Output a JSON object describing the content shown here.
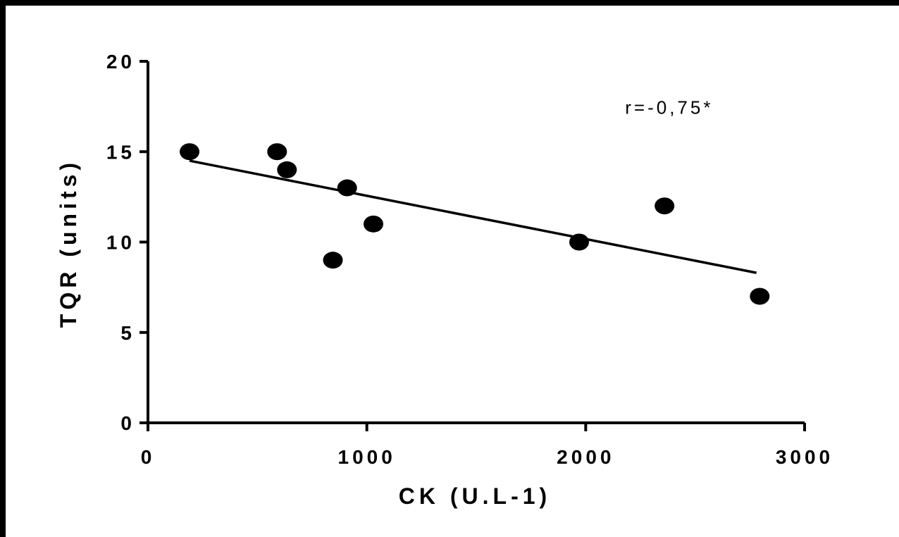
{
  "chart_data": {
    "type": "scatter",
    "xlabel": "CK (U.L-1)",
    "ylabel": "TQR (units)",
    "xlim": [
      0,
      3000
    ],
    "ylim": [
      0,
      20
    ],
    "x_ticks": [
      "0",
      "1000",
      "2000",
      "3000"
    ],
    "y_ticks": [
      "0",
      "5",
      "10",
      "15",
      "20"
    ],
    "points": [
      {
        "x": 190,
        "y": 15
      },
      {
        "x": 590,
        "y": 15
      },
      {
        "x": 635,
        "y": 14
      },
      {
        "x": 910,
        "y": 13
      },
      {
        "x": 845,
        "y": 9
      },
      {
        "x": 1030,
        "y": 11
      },
      {
        "x": 1970,
        "y": 10
      },
      {
        "x": 2360,
        "y": 12
      },
      {
        "x": 2795,
        "y": 7
      }
    ],
    "trendline": {
      "x": [
        190,
        2780
      ],
      "y": [
        14.5,
        8.3
      ]
    },
    "annotation": "r=-0,75*",
    "annotation_pos": {
      "x": 2180,
      "y": 17.1
    },
    "grid": false,
    "colors": {
      "marker": "#000000",
      "line": "#000000",
      "axis": "#000000"
    }
  }
}
